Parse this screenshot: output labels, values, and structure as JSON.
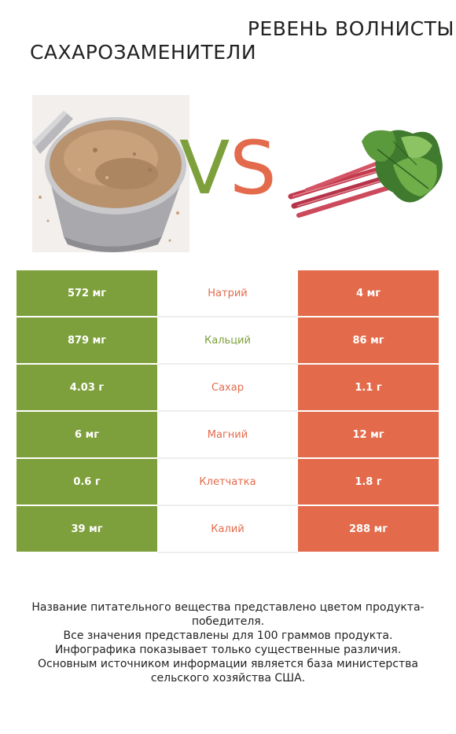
{
  "header": {
    "left_title": "САХАРОЗАМЕНИТЕЛИ",
    "right_title": "РЕВЕНЬ ВОЛНИСТЫЙ",
    "vs_v": "V",
    "vs_s": "S"
  },
  "colors": {
    "left_winner": "#7ea03c",
    "right_winner": "#e36b4c"
  },
  "rows": [
    {
      "left": "572 мг",
      "nutrient": "Натрий",
      "right": "4 мг",
      "winner": "right"
    },
    {
      "left": "879 мг",
      "nutrient": "Кальций",
      "right": "86 мг",
      "winner": "left"
    },
    {
      "left": "4.03 г",
      "nutrient": "Сахар",
      "right": "1.1 г",
      "winner": "right"
    },
    {
      "left": "6 мг",
      "nutrient": "Магний",
      "right": "12 мг",
      "winner": "right"
    },
    {
      "left": "0.6 г",
      "nutrient": "Клетчатка",
      "right": "1.8 г",
      "winner": "right"
    },
    {
      "left": "39 мг",
      "nutrient": "Калий",
      "right": "288 мг",
      "winner": "right"
    }
  ],
  "footer": {
    "line1": "Название питательного вещества представлено цветом продукта-победителя.",
    "line2": "Все значения представлены для 100 граммов продукта.",
    "line3": "Инфографика показывает только существенные различия.",
    "line4": "Основным источником информации является база министерства сельского хозяйства США."
  }
}
